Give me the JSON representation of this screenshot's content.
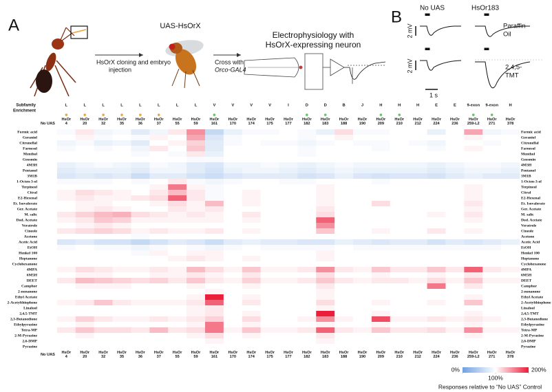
{
  "panel_a": {
    "label": "A",
    "step1_lines": [
      "HsOrX cloning and embryo",
      "injection"
    ],
    "fly_label": "UAS-HsOrX",
    "cross_lines": [
      "Cross with",
      "Orco-GAL4"
    ],
    "ephys_lines": [
      "Electrophysiology with",
      "HsOrX-expressing neuron"
    ]
  },
  "panel_b": {
    "label": "B",
    "columns": [
      "No UAS",
      "HsOr183"
    ],
    "odors": [
      [
        "Paraffin",
        "Oil"
      ],
      [
        "2,4,5-",
        "TMT"
      ]
    ],
    "scale_v": "2 mV",
    "scale_t": "1 s"
  },
  "chart_data": {
    "type": "heatmap",
    "row_header_subfamily": "Subfamily",
    "row_header_enrichment": "Enrichment",
    "columns": [
      "No UAS",
      "HsOr\n4",
      "HsOr\n20",
      "HsOr\n32",
      "HsOr\n35",
      "HsOr\n36",
      "HsOr\n37",
      "HsOr\n55",
      "HsOr\n59",
      "HsOr\n161",
      "HsOr\n170",
      "HsOr\n174",
      "HsOr\n175",
      "HsOr\n177",
      "HsOr\n182",
      "HsOr\n183",
      "HsOr\n188",
      "HsOr\n190",
      "HsOr\n209",
      "HsOr\n210",
      "HsOr\n212",
      "HsOr\n224",
      "HsOr\n236",
      "HsOr\n259-L2",
      "HsOr\n271",
      "HsOr\n378"
    ],
    "subfamilies": [
      null,
      "L",
      "L",
      "L",
      "L",
      "L",
      "L",
      "L",
      "L",
      "V",
      "V",
      "V",
      "V",
      "I",
      "D",
      "D",
      "B",
      "J",
      "H",
      "H",
      "H",
      "E",
      "E",
      "9-exon",
      "9-exon",
      "H"
    ],
    "enrichment_colors": [
      null,
      "#e8a33c",
      "#e8a33c",
      "#e8a33c",
      "#e8a33c",
      "#e8a33c",
      "#e8a33c",
      null,
      null,
      "#5cc45c",
      null,
      null,
      null,
      null,
      "#5cc45c",
      "#5cc45c",
      null,
      null,
      "#5cc45c",
      "#5cc45c",
      null,
      null,
      null,
      "#5cc45c",
      "#5cc45c",
      null
    ],
    "rows": [
      "Formic acid",
      "Geraniol",
      "Citronellal",
      "Farnesol",
      "Menthol",
      "Geosmin",
      "4M3H",
      "Pentanol",
      "3M1B",
      "1-Octen-3-ol",
      "Terpineol",
      "Citral",
      "E2-Hexenal",
      "Et. Isovalerate",
      "Ger. Acetate",
      "M. salic",
      "Dod. Acetate",
      "Veratrole",
      "Cineole",
      "Acetone",
      "Acetic Acid",
      "EtOH",
      "Henkel 100",
      "Heptanone",
      "Cyclohexanone",
      "4MPA",
      "6M5H",
      "DEET",
      "Camphor",
      "2-nonanone",
      "Ethyl Acetate",
      "2-Acetylthiophene",
      "Linalool",
      "2,4,5-TMT",
      "2,3-Butanedione",
      "Ethylpyrazine",
      "Tetra-MP",
      "2-M-Pyrazine",
      "2,6-DMP",
      "Pyrazine"
    ],
    "values": [
      [
        100,
        95,
        110,
        90,
        95,
        80,
        90,
        110,
        150,
        60,
        85,
        95,
        95,
        100,
        95,
        85,
        115,
        95,
        95,
        100,
        100,
        85,
        100,
        140,
        90,
        95
      ],
      [
        100,
        100,
        105,
        95,
        100,
        95,
        105,
        100,
        140,
        75,
        95,
        100,
        100,
        100,
        95,
        100,
        105,
        100,
        100,
        100,
        100,
        100,
        100,
        105,
        100,
        100
      ],
      [
        100,
        90,
        95,
        85,
        90,
        80,
        100,
        105,
        120,
        80,
        95,
        100,
        95,
        95,
        90,
        95,
        100,
        95,
        95,
        100,
        95,
        90,
        100,
        100,
        95,
        100
      ],
      [
        100,
        95,
        100,
        95,
        100,
        90,
        110,
        100,
        125,
        80,
        100,
        100,
        100,
        100,
        95,
        100,
        100,
        100,
        95,
        100,
        100,
        95,
        100,
        105,
        100,
        100
      ],
      [
        100,
        100,
        100,
        100,
        100,
        95,
        100,
        95,
        110,
        85,
        100,
        100,
        100,
        100,
        95,
        100,
        100,
        100,
        100,
        100,
        100,
        100,
        100,
        100,
        100,
        100
      ],
      [
        100,
        100,
        100,
        100,
        100,
        100,
        100,
        100,
        95,
        95,
        100,
        100,
        100,
        100,
        100,
        100,
        100,
        100,
        100,
        100,
        100,
        100,
        100,
        100,
        100,
        100
      ],
      [
        100,
        85,
        90,
        95,
        90,
        85,
        95,
        90,
        80,
        75,
        90,
        90,
        95,
        90,
        85,
        90,
        95,
        90,
        90,
        90,
        90,
        85,
        90,
        95,
        95,
        90
      ],
      [
        100,
        80,
        85,
        85,
        85,
        80,
        90,
        90,
        80,
        70,
        85,
        90,
        90,
        85,
        80,
        85,
        90,
        85,
        85,
        85,
        85,
        80,
        85,
        90,
        90,
        85
      ],
      [
        100,
        75,
        80,
        75,
        80,
        65,
        80,
        80,
        70,
        65,
        75,
        80,
        80,
        80,
        70,
        75,
        85,
        75,
        70,
        75,
        75,
        70,
        80,
        85,
        80,
        80
      ],
      [
        100,
        95,
        95,
        95,
        100,
        95,
        100,
        110,
        95,
        90,
        95,
        100,
        100,
        95,
        95,
        100,
        100,
        100,
        95,
        100,
        100,
        100,
        100,
        100,
        100,
        100
      ],
      [
        100,
        100,
        100,
        100,
        100,
        100,
        105,
        160,
        105,
        95,
        100,
        100,
        100,
        100,
        100,
        105,
        100,
        100,
        100,
        100,
        100,
        100,
        100,
        105,
        100,
        100
      ],
      [
        100,
        105,
        115,
        110,
        105,
        100,
        110,
        130,
        110,
        95,
        100,
        105,
        100,
        100,
        100,
        105,
        100,
        100,
        100,
        100,
        100,
        100,
        100,
        105,
        100,
        100
      ],
      [
        100,
        105,
        110,
        105,
        105,
        110,
        115,
        170,
        110,
        95,
        100,
        105,
        100,
        100,
        100,
        105,
        100,
        100,
        100,
        100,
        100,
        100,
        100,
        105,
        100,
        100
      ],
      [
        100,
        100,
        105,
        105,
        100,
        100,
        105,
        115,
        105,
        130,
        100,
        105,
        100,
        100,
        100,
        105,
        100,
        100,
        115,
        100,
        100,
        100,
        100,
        110,
        100,
        100
      ],
      [
        100,
        100,
        105,
        110,
        105,
        100,
        100,
        110,
        105,
        110,
        100,
        100,
        100,
        100,
        100,
        110,
        100,
        100,
        100,
        100,
        100,
        100,
        100,
        105,
        100,
        100
      ],
      [
        100,
        110,
        120,
        130,
        135,
        115,
        110,
        105,
        110,
        105,
        100,
        110,
        100,
        100,
        100,
        115,
        100,
        100,
        100,
        100,
        100,
        105,
        100,
        110,
        100,
        100
      ],
      [
        100,
        105,
        110,
        125,
        120,
        105,
        105,
        105,
        105,
        105,
        100,
        105,
        100,
        100,
        100,
        170,
        100,
        100,
        100,
        100,
        100,
        100,
        100,
        105,
        100,
        100
      ],
      [
        100,
        100,
        105,
        110,
        105,
        100,
        100,
        100,
        100,
        100,
        100,
        100,
        100,
        100,
        100,
        150,
        100,
        100,
        100,
        100,
        100,
        100,
        100,
        100,
        100,
        100
      ],
      [
        100,
        110,
        115,
        120,
        115,
        105,
        110,
        105,
        105,
        110,
        100,
        105,
        100,
        100,
        100,
        125,
        100,
        100,
        105,
        100,
        100,
        110,
        100,
        105,
        100,
        100
      ],
      [
        100,
        100,
        100,
        100,
        100,
        95,
        100,
        100,
        100,
        100,
        100,
        100,
        100,
        100,
        100,
        100,
        100,
        100,
        100,
        100,
        100,
        100,
        100,
        100,
        100,
        100
      ],
      [
        100,
        75,
        80,
        70,
        70,
        60,
        70,
        80,
        75,
        65,
        80,
        85,
        80,
        80,
        75,
        75,
        85,
        80,
        75,
        80,
        80,
        70,
        80,
        75,
        80,
        85
      ],
      [
        100,
        95,
        100,
        95,
        95,
        90,
        95,
        100,
        95,
        90,
        95,
        100,
        95,
        95,
        95,
        95,
        100,
        95,
        95,
        95,
        95,
        95,
        95,
        95,
        95,
        100
      ],
      [
        100,
        100,
        100,
        100,
        100,
        95,
        105,
        100,
        105,
        105,
        100,
        100,
        100,
        100,
        100,
        105,
        100,
        100,
        100,
        100,
        100,
        100,
        100,
        100,
        100,
        100
      ],
      [
        100,
        100,
        100,
        100,
        100,
        100,
        100,
        105,
        110,
        105,
        100,
        105,
        100,
        100,
        100,
        105,
        100,
        100,
        100,
        100,
        100,
        100,
        100,
        100,
        100,
        100
      ],
      [
        100,
        100,
        100,
        100,
        100,
        100,
        100,
        100,
        100,
        100,
        100,
        100,
        100,
        100,
        100,
        100,
        100,
        100,
        100,
        100,
        100,
        100,
        100,
        100,
        100,
        100
      ],
      [
        100,
        105,
        115,
        110,
        105,
        105,
        110,
        105,
        130,
        115,
        105,
        125,
        105,
        105,
        110,
        150,
        110,
        105,
        125,
        110,
        110,
        125,
        110,
        170,
        110,
        105
      ],
      [
        100,
        100,
        105,
        105,
        100,
        100,
        105,
        105,
        110,
        105,
        100,
        110,
        100,
        100,
        100,
        115,
        100,
        100,
        105,
        100,
        100,
        105,
        100,
        110,
        100,
        100
      ],
      [
        100,
        110,
        130,
        125,
        120,
        115,
        120,
        110,
        125,
        110,
        105,
        120,
        105,
        105,
        110,
        125,
        110,
        105,
        110,
        110,
        105,
        115,
        105,
        125,
        105,
        105
      ],
      [
        100,
        100,
        105,
        105,
        105,
        100,
        100,
        100,
        105,
        100,
        100,
        105,
        100,
        100,
        100,
        110,
        100,
        100,
        100,
        100,
        100,
        160,
        100,
        110,
        100,
        100
      ],
      [
        100,
        100,
        100,
        100,
        100,
        100,
        100,
        100,
        100,
        105,
        100,
        100,
        100,
        100,
        100,
        105,
        100,
        100,
        100,
        100,
        100,
        100,
        100,
        100,
        100,
        100
      ],
      [
        100,
        100,
        100,
        100,
        100,
        100,
        100,
        100,
        105,
        210,
        100,
        105,
        100,
        100,
        100,
        105,
        100,
        100,
        100,
        100,
        100,
        100,
        100,
        105,
        100,
        100
      ],
      [
        100,
        105,
        110,
        125,
        110,
        105,
        105,
        105,
        110,
        170,
        100,
        110,
        100,
        100,
        100,
        115,
        100,
        100,
        105,
        100,
        100,
        105,
        100,
        125,
        100,
        100
      ],
      [
        100,
        100,
        100,
        100,
        100,
        100,
        100,
        100,
        105,
        110,
        100,
        100,
        100,
        100,
        100,
        105,
        100,
        100,
        100,
        100,
        100,
        100,
        100,
        100,
        100,
        100
      ],
      [
        100,
        100,
        100,
        100,
        100,
        100,
        100,
        100,
        105,
        110,
        100,
        105,
        100,
        100,
        100,
        200,
        100,
        100,
        105,
        100,
        100,
        100,
        100,
        105,
        100,
        100
      ],
      [
        100,
        105,
        120,
        110,
        105,
        105,
        110,
        105,
        110,
        120,
        100,
        115,
        100,
        100,
        105,
        150,
        105,
        100,
        180,
        105,
        105,
        110,
        105,
        110,
        105,
        100
      ],
      [
        100,
        100,
        105,
        100,
        100,
        100,
        100,
        100,
        105,
        160,
        100,
        105,
        100,
        100,
        100,
        105,
        100,
        100,
        105,
        100,
        100,
        100,
        100,
        105,
        100,
        100
      ],
      [
        100,
        110,
        125,
        115,
        115,
        110,
        130,
        110,
        115,
        160,
        105,
        125,
        105,
        105,
        110,
        170,
        110,
        105,
        125,
        110,
        110,
        115,
        105,
        150,
        105,
        105
      ],
      [
        100,
        100,
        105,
        100,
        100,
        100,
        100,
        100,
        105,
        115,
        100,
        105,
        100,
        100,
        100,
        110,
        100,
        100,
        100,
        100,
        100,
        100,
        100,
        105,
        100,
        100
      ],
      [
        100,
        100,
        100,
        100,
        100,
        100,
        100,
        100,
        100,
        105,
        100,
        100,
        100,
        100,
        100,
        105,
        100,
        100,
        100,
        100,
        100,
        100,
        100,
        100,
        100,
        100
      ],
      [
        100,
        100,
        100,
        100,
        100,
        100,
        100,
        100,
        100,
        100,
        100,
        100,
        100,
        100,
        100,
        100,
        100,
        100,
        100,
        100,
        100,
        100,
        100,
        100,
        100,
        100
      ]
    ],
    "colorbar": {
      "lim": [
        0,
        200
      ],
      "colors": [
        "#6ea0e1",
        "#ffffff",
        "#eb1e3c"
      ],
      "ticks": [
        {
          "value": 0,
          "label": "0%"
        },
        {
          "value": 100,
          "label": "100%"
        },
        {
          "value": 200,
          "label": "200%"
        }
      ]
    },
    "caption": "Responses relative to “No UAS” Control"
  }
}
